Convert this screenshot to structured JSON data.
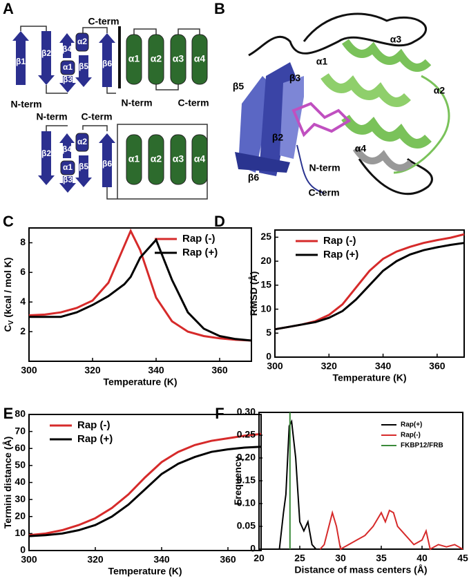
{
  "panel_labels": [
    "A",
    "B",
    "C",
    "D",
    "E",
    "F"
  ],
  "topology": {
    "top": {
      "labels": [
        "β1",
        "β2",
        "β4",
        "α2",
        "α1",
        "β3",
        "β5",
        "β6",
        "α1",
        "α2",
        "α3",
        "α4"
      ],
      "termini": [
        "C-term",
        "N-term",
        "N-term",
        "C-term"
      ]
    },
    "bottom": {
      "labels": [
        "β2",
        "β4",
        "α2",
        "α1",
        "β3",
        "β5",
        "β6",
        "α1",
        "α2",
        "α3",
        "α4"
      ],
      "termini": [
        "N-term",
        "C-term"
      ]
    }
  },
  "structure": {
    "labels": [
      "α3",
      "α1",
      "α2",
      "β5",
      "β3",
      "β2",
      "α4",
      "β6",
      "N-term",
      "C-term"
    ]
  },
  "chart_data": [
    {
      "type": "line",
      "ylabel": {
        "main": "C",
        "sub": "V",
        "rest": "(kcal / mol K)"
      },
      "xlabel": "Temperature (K)",
      "x": [
        300,
        305,
        310,
        315,
        320,
        325,
        330,
        332,
        335,
        340,
        345,
        350,
        355,
        360,
        365,
        370
      ],
      "series": [
        {
          "name": "Rap (-)",
          "color": "#d62a2a",
          "values": [
            3.1,
            3.15,
            3.3,
            3.6,
            4.1,
            5.3,
            7.8,
            8.8,
            7.5,
            4.3,
            2.7,
            2.0,
            1.7,
            1.55,
            1.45,
            1.4
          ]
        },
        {
          "name": "Rap (+)",
          "color": "#000000",
          "values": [
            3.0,
            3.0,
            3.0,
            3.3,
            3.8,
            4.4,
            5.2,
            5.7,
            7.0,
            8.2,
            5.5,
            3.3,
            2.2,
            1.7,
            1.5,
            1.4
          ]
        }
      ],
      "xlim": [
        300,
        370
      ],
      "xticks": [
        300,
        320,
        340,
        360
      ],
      "ylim": [
        0,
        9
      ],
      "yticks": [
        2,
        4,
        6,
        8
      ],
      "legend": "upper right"
    },
    {
      "type": "line",
      "ylabel": {
        "main": "RMSD (Å)"
      },
      "xlabel": "Temperature (K)",
      "x": [
        300,
        305,
        310,
        315,
        320,
        325,
        330,
        335,
        340,
        345,
        350,
        355,
        360,
        365,
        370
      ],
      "series": [
        {
          "name": "Rap (-)",
          "color": "#d62a2a",
          "values": [
            5.8,
            6.3,
            6.8,
            7.5,
            8.8,
            11,
            14.5,
            18,
            20.5,
            22,
            23,
            23.8,
            24.4,
            24.9,
            25.6
          ]
        },
        {
          "name": "Rap (+)",
          "color": "#000000",
          "values": [
            5.8,
            6.3,
            6.8,
            7.3,
            8.2,
            9.6,
            12,
            15,
            18,
            20,
            21.4,
            22.3,
            22.9,
            23.4,
            23.8
          ]
        }
      ],
      "xlim": [
        300,
        370
      ],
      "xticks": [
        300,
        320,
        340,
        360
      ],
      "ylim": [
        0,
        26.5
      ],
      "yticks": [
        0,
        5,
        10,
        15,
        20,
        25
      ],
      "legend": "upper left"
    },
    {
      "type": "line",
      "ylabel": {
        "main": "Termini distance (Å)"
      },
      "xlabel": "Temperature (K)",
      "x": [
        300,
        305,
        310,
        315,
        320,
        325,
        330,
        335,
        340,
        345,
        350,
        355,
        360,
        365,
        370
      ],
      "series": [
        {
          "name": "Rap (-)",
          "color": "#d62a2a",
          "values": [
            9,
            10,
            12,
            15,
            19,
            25,
            33,
            43,
            52,
            58,
            62,
            64.5,
            66,
            67.5,
            68.5
          ]
        },
        {
          "name": "Rap (+)",
          "color": "#000000",
          "values": [
            8.5,
            9,
            10,
            12,
            15,
            20,
            27,
            36,
            45,
            51,
            55,
            58,
            59.5,
            60.5,
            61
          ]
        }
      ],
      "xlim": [
        300,
        370
      ],
      "xticks": [
        300,
        320,
        340,
        360
      ],
      "ylim": [
        0,
        80
      ],
      "yticks": [
        0,
        10,
        20,
        30,
        40,
        50,
        60,
        70,
        80
      ],
      "legend": "upper left"
    },
    {
      "type": "line",
      "ylabel": {
        "main": "Frequency"
      },
      "xlabel": "Distance of mass centers  (Å)",
      "series": [
        {
          "name": "Rap(+)",
          "color": "#000000",
          "x": [
            22.5,
            23,
            23.3,
            23.7,
            24,
            24.5,
            25,
            25.5,
            26,
            26.5,
            27
          ],
          "values": [
            0,
            0.08,
            0.12,
            0.27,
            0.28,
            0.2,
            0.06,
            0.04,
            0.06,
            0.01,
            0
          ]
        },
        {
          "name": "Rap(-)",
          "color": "#d62a2a",
          "x": [
            27.5,
            28,
            29,
            29.5,
            30,
            31,
            32,
            33,
            34,
            35,
            35.5,
            36,
            36.5,
            37,
            38,
            39,
            40,
            40.5,
            41,
            42,
            43,
            44,
            45
          ],
          "values": [
            0,
            0.01,
            0.08,
            0.05,
            0,
            0.01,
            0.02,
            0.03,
            0.05,
            0.08,
            0.06,
            0.085,
            0.08,
            0.05,
            0.03,
            0.01,
            0.02,
            0.04,
            0,
            0.01,
            0.005,
            0.01,
            0
          ]
        },
        {
          "name": "FKBP12/FRB",
          "color": "#3a8a3a",
          "x": [
            23.8,
            23.8
          ],
          "values": [
            0,
            0.3
          ]
        }
      ],
      "xlim": [
        20,
        45
      ],
      "xticks": [
        20,
        25,
        30,
        35,
        40,
        45
      ],
      "ylim": [
        0,
        0.3
      ],
      "yticks": [
        {
          "value": 0,
          "label": "0"
        },
        0.05,
        {
          "value": 0.1,
          "label": "0.10"
        },
        0.15,
        {
          "value": 0.2,
          "label": "0.20"
        },
        0.25,
        {
          "value": 0.3,
          "label": "0.30"
        }
      ],
      "legend": "upper right"
    }
  ]
}
